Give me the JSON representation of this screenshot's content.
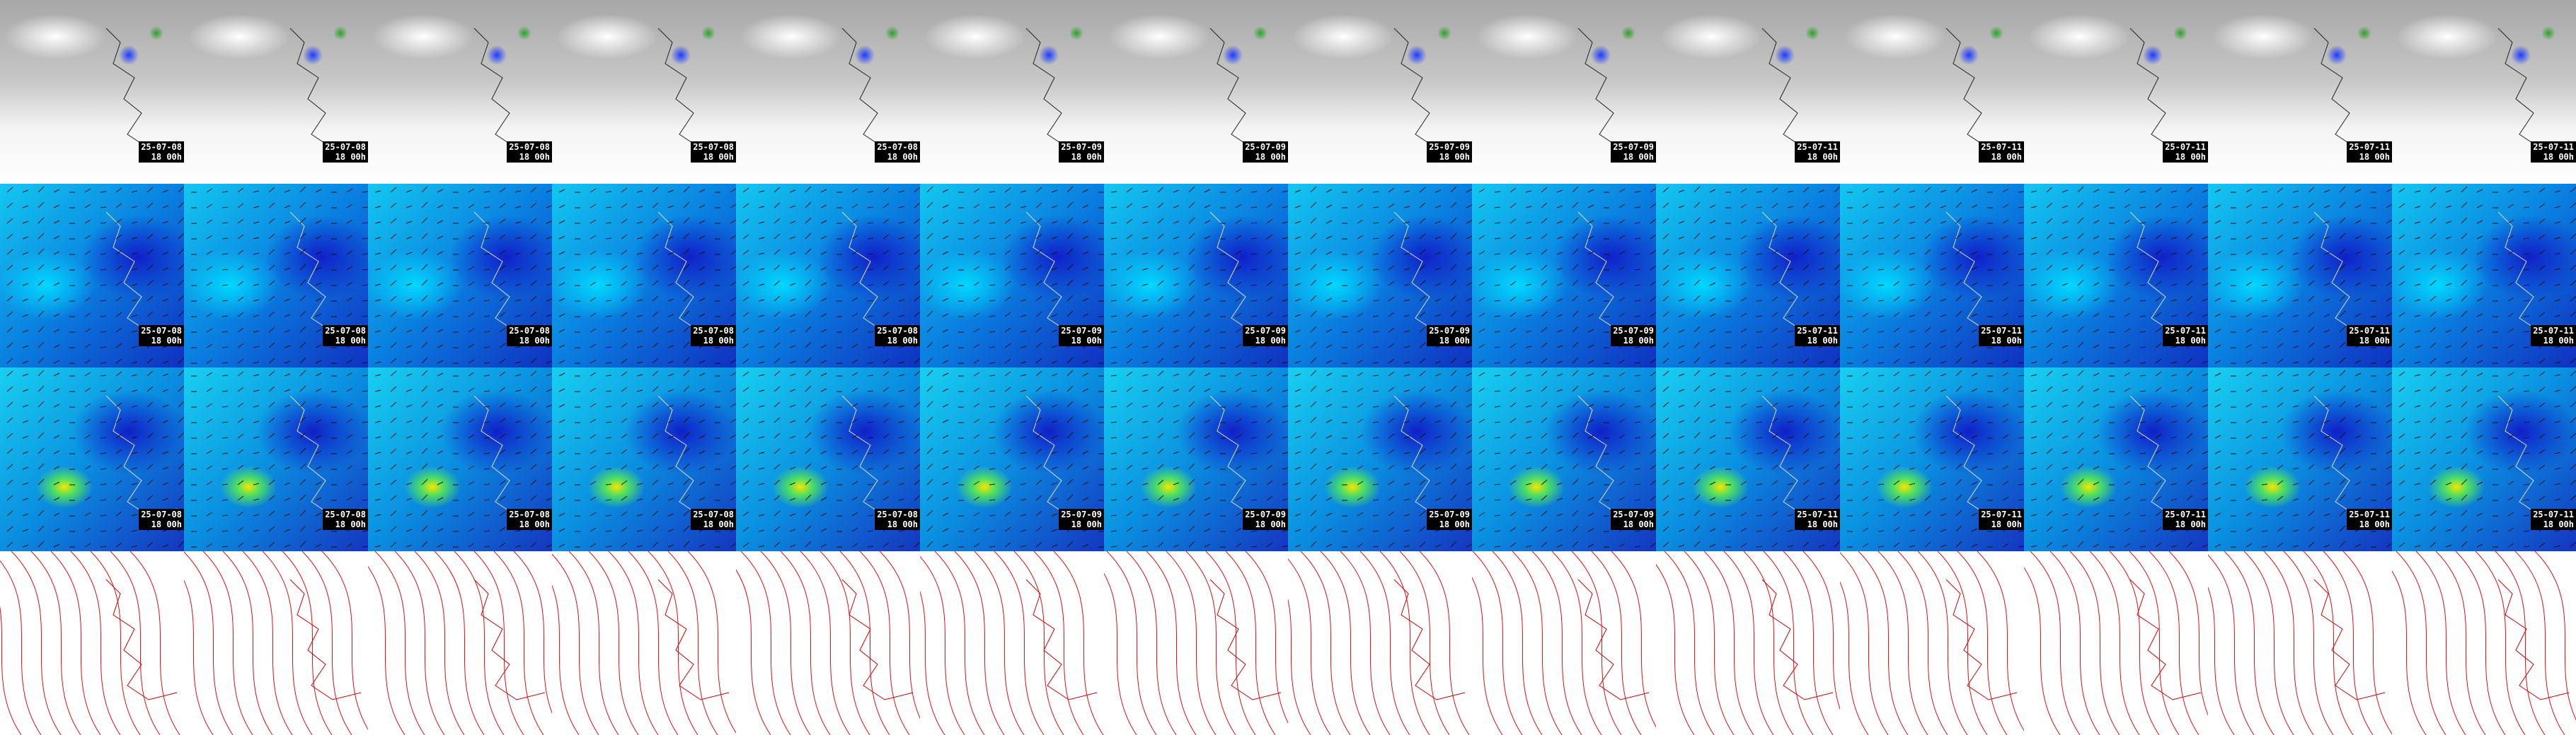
{
  "grid": [
    [
      {
        "date": "25-07-08",
        "time": "18 00h"
      },
      {
        "date": "25-07-08",
        "time": "18 00h"
      },
      {
        "date": "25-07-08",
        "time": "18 00h"
      },
      {
        "date": "25-07-08",
        "time": "18 00h"
      },
      {
        "date": "25-07-08",
        "time": "18 00h"
      },
      {
        "date": "25-07-09",
        "time": "18 00h"
      },
      {
        "date": "25-07-09",
        "time": "18 00h"
      },
      {
        "date": "25-07-09",
        "time": "18 00h"
      },
      {
        "date": "25-07-09",
        "time": "18 00h"
      },
      {
        "date": "25-07-11",
        "time": "18 00h"
      },
      {
        "date": "25-07-11",
        "time": "18 00h"
      },
      {
        "date": "25-07-11",
        "time": "18 00h"
      },
      {
        "date": "25-07-11",
        "time": "18 00h"
      },
      {
        "date": "25-07-11",
        "time": "18 00h"
      }
    ],
    [
      {
        "date": "25-07-08",
        "time": "18 00h"
      },
      {
        "date": "25-07-08",
        "time": "18 00h"
      },
      {
        "date": "25-07-08",
        "time": "18 00h"
      },
      {
        "date": "25-07-08",
        "time": "18 00h"
      },
      {
        "date": "25-07-08",
        "time": "18 00h"
      },
      {
        "date": "25-07-09",
        "time": "18 00h"
      },
      {
        "date": "25-07-09",
        "time": "18 00h"
      },
      {
        "date": "25-07-09",
        "time": "18 00h"
      },
      {
        "date": "25-07-09",
        "time": "18 00h"
      },
      {
        "date": "25-07-11",
        "time": "18 00h"
      },
      {
        "date": "25-07-11",
        "time": "18 00h"
      },
      {
        "date": "25-07-11",
        "time": "18 00h"
      },
      {
        "date": "25-07-11",
        "time": "18 00h"
      },
      {
        "date": "25-07-11",
        "time": "18 00h"
      }
    ],
    [
      {
        "date": "25-07-08",
        "time": "18 00h"
      },
      {
        "date": "25-07-08",
        "time": "18 00h"
      },
      {
        "date": "25-07-08",
        "time": "18 00h"
      },
      {
        "date": "25-07-08",
        "time": "18 00h"
      },
      {
        "date": "25-07-08",
        "time": "18 00h"
      },
      {
        "date": "25-07-09",
        "time": "18 00h"
      },
      {
        "date": "25-07-09",
        "time": "18 00h"
      },
      {
        "date": "25-07-09",
        "time": "18 00h"
      },
      {
        "date": "25-07-09",
        "time": "18 00h"
      },
      {
        "date": "25-07-11",
        "time": "18 00h"
      },
      {
        "date": "25-07-11",
        "time": "18 00h"
      },
      {
        "date": "25-07-11",
        "time": "18 00h"
      },
      {
        "date": "25-07-11",
        "time": "18 00h"
      },
      {
        "date": "25-07-11",
        "time": "18 00h"
      }
    ]
  ]
}
